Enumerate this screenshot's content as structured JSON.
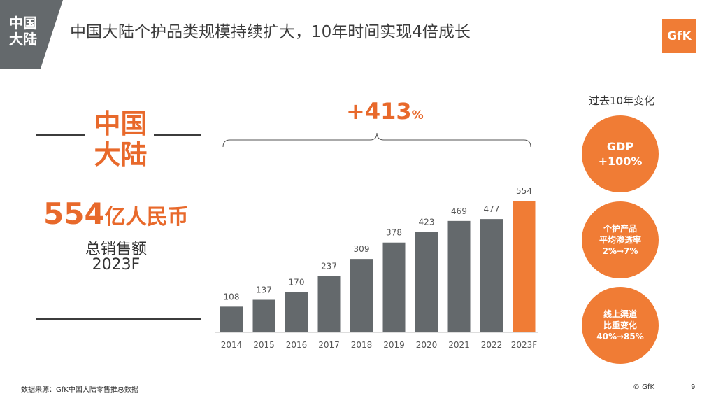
{
  "header": {
    "region_tag_line1": "中国",
    "region_tag_line2": "大陆",
    "title": "中国大陆个护品类规模持续扩大，10年时间实现4倍成长",
    "logo_text": "GfK"
  },
  "left_panel": {
    "region_line1": "中国",
    "region_line2": "大陆",
    "sales_value": "554",
    "sales_unit": "亿人民币",
    "sales_label": "总销售额",
    "sales_year": "2023F"
  },
  "growth": {
    "value": "+413",
    "unit": "%"
  },
  "side_panel": {
    "title": "过去10年变化",
    "items": [
      {
        "line1": "GDP",
        "line2": "+100%",
        "line3": ""
      },
      {
        "line1": "个护产品",
        "line2": "平均渗透率",
        "line3": "2%→7%"
      },
      {
        "line1": "线上渠道",
        "line2": "比重变化",
        "line3": "40%→85%"
      }
    ]
  },
  "footer": {
    "source": "数据来源：GfK中国大陆零售推总数据",
    "copyright": "© GfK",
    "page_number": "9"
  },
  "colors": {
    "accent": "#f07c35",
    "bar_default": "#64696c",
    "bar_highlight": "#f07c35",
    "text_dark": "#3c3c3c"
  },
  "chart_data": {
    "type": "bar",
    "categories": [
      "2014",
      "2015",
      "2016",
      "2017",
      "2018",
      "2019",
      "2020",
      "2021",
      "2022",
      "2023F"
    ],
    "values": [
      108,
      137,
      170,
      237,
      309,
      378,
      423,
      469,
      477,
      554
    ],
    "highlight_index": 9,
    "title": "",
    "xlabel": "",
    "ylabel": "",
    "ylim": [
      0,
      554
    ],
    "grid": false,
    "data_labels": true
  }
}
